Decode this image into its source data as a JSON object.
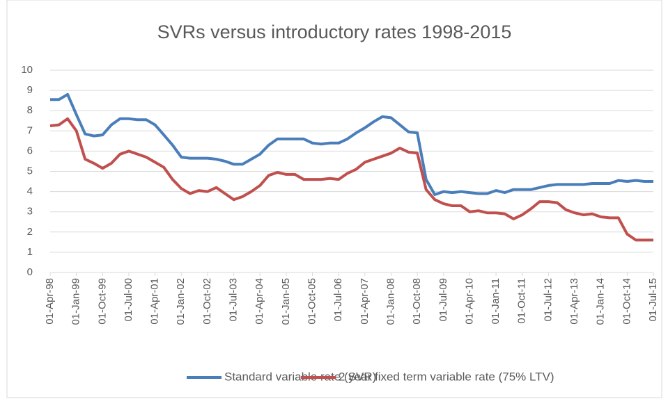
{
  "chart_data": {
    "type": "line",
    "title": "SVRs versus introductory rates 1998-2015",
    "x": [
      "01-Apr-98",
      "01-Jul-98",
      "01-Oct-98",
      "01-Jan-99",
      "01-Apr-99",
      "01-Jul-99",
      "01-Oct-99",
      "01-Jan-00",
      "01-Apr-00",
      "01-Jul-00",
      "01-Oct-00",
      "01-Jan-01",
      "01-Apr-01",
      "01-Jul-01",
      "01-Oct-01",
      "01-Jan-02",
      "01-Apr-02",
      "01-Jul-02",
      "01-Oct-02",
      "01-Jan-03",
      "01-Apr-03",
      "01-Jul-03",
      "01-Oct-03",
      "01-Jan-04",
      "01-Apr-04",
      "01-Jul-04",
      "01-Oct-04",
      "01-Jan-05",
      "01-Apr-05",
      "01-Jul-05",
      "01-Oct-05",
      "01-Jan-06",
      "01-Apr-06",
      "01-Jul-06",
      "01-Oct-06",
      "01-Jan-07",
      "01-Apr-07",
      "01-Jul-07",
      "01-Oct-07",
      "01-Jan-08",
      "01-Apr-08",
      "01-Jul-08",
      "01-Oct-08",
      "01-Jan-09",
      "01-Apr-09",
      "01-Jul-09",
      "01-Oct-09",
      "01-Jan-10",
      "01-Apr-10",
      "01-Jul-10",
      "01-Oct-10",
      "01-Jan-11",
      "01-Apr-11",
      "01-Jul-11",
      "01-Oct-11",
      "01-Jan-12",
      "01-Apr-12",
      "01-Jul-12",
      "01-Oct-12",
      "01-Jan-13",
      "01-Apr-13",
      "01-Jul-13",
      "01-Oct-13",
      "01-Jan-14",
      "01-Apr-14",
      "01-Jul-14",
      "01-Oct-14",
      "01-Jan-15",
      "01-Apr-15",
      "01-Jul-15"
    ],
    "series": [
      {
        "name": "Standard variable rate (SVR)",
        "color": "#4a7ebb",
        "values": [
          8.55,
          8.55,
          8.8,
          7.8,
          6.85,
          6.75,
          6.8,
          7.3,
          7.6,
          7.6,
          7.55,
          7.55,
          7.3,
          6.8,
          6.3,
          5.7,
          5.65,
          5.65,
          5.65,
          5.6,
          5.5,
          5.35,
          5.35,
          5.6,
          5.85,
          6.3,
          6.6,
          6.6,
          6.6,
          6.6,
          6.4,
          6.35,
          6.4,
          6.4,
          6.6,
          6.9,
          7.15,
          7.45,
          7.7,
          7.65,
          7.3,
          6.95,
          6.9,
          4.6,
          3.85,
          4.0,
          3.95,
          4.0,
          3.95,
          3.9,
          3.9,
          4.05,
          3.95,
          4.1,
          4.1,
          4.1,
          4.2,
          4.3,
          4.35,
          4.35,
          4.35,
          4.35,
          4.4,
          4.4,
          4.4,
          4.55,
          4.5,
          4.55,
          4.5,
          4.5
        ]
      },
      {
        "name": "2 year fixed term variable rate (75% LTV)",
        "color": "#c0504d",
        "values": [
          7.25,
          7.3,
          7.6,
          7.0,
          5.6,
          5.4,
          5.15,
          5.4,
          5.85,
          6.0,
          5.85,
          5.7,
          5.45,
          5.2,
          4.6,
          4.15,
          3.9,
          4.05,
          4.0,
          4.2,
          3.9,
          3.6,
          3.75,
          4.0,
          4.3,
          4.8,
          4.95,
          4.85,
          4.85,
          4.6,
          4.6,
          4.6,
          4.65,
          4.6,
          4.9,
          5.1,
          5.45,
          5.6,
          5.75,
          5.9,
          6.15,
          5.95,
          5.9,
          4.1,
          3.6,
          3.4,
          3.3,
          3.3,
          3.0,
          3.05,
          2.95,
          2.95,
          2.9,
          2.65,
          2.85,
          3.15,
          3.5,
          3.5,
          3.45,
          3.1,
          2.95,
          2.85,
          2.9,
          2.75,
          2.7,
          2.7,
          1.9,
          1.6,
          1.6,
          1.6
        ]
      }
    ],
    "xlim": [
      "01-Apr-98",
      "01-Jul-15"
    ],
    "xticks": [
      "01-Apr-98",
      "01-Jan-99",
      "01-Oct-99",
      "01-Jul-00",
      "01-Apr-01",
      "01-Jan-02",
      "01-Oct-02",
      "01-Jul-03",
      "01-Apr-04",
      "01-Jan-05",
      "01-Oct-05",
      "01-Jul-06",
      "01-Apr-07",
      "01-Jan-08",
      "01-Oct-08",
      "01-Jul-09",
      "01-Apr-10",
      "01-Jan-11",
      "01-Oct-11",
      "01-Jul-12",
      "01-Apr-13",
      "01-Jan-14",
      "01-Oct-14",
      "01-Jul-15"
    ],
    "ylim": [
      0,
      10
    ],
    "yticks": [
      0,
      1,
      2,
      3,
      4,
      5,
      6,
      7,
      8,
      9,
      10
    ],
    "grid": true,
    "legend": "bottom"
  }
}
